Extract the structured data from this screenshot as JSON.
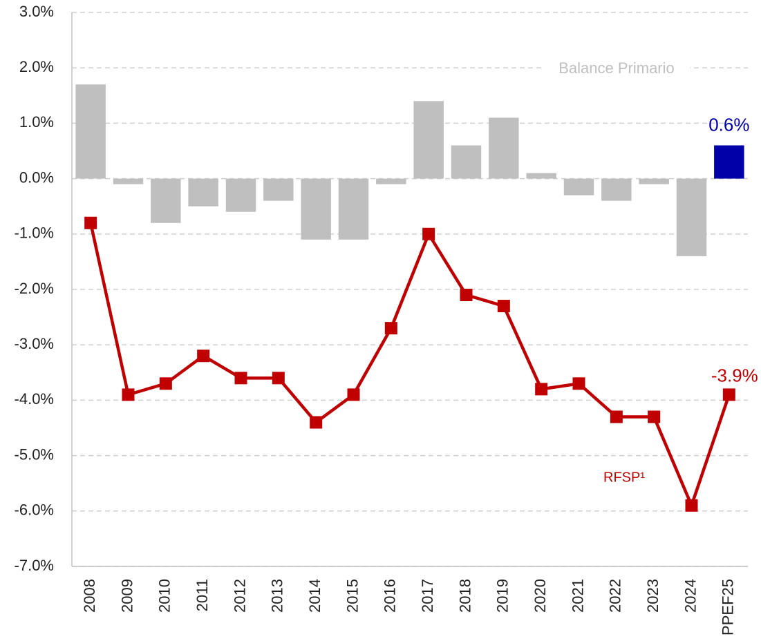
{
  "chart_data": {
    "type": "bar_line",
    "categories": [
      "2008",
      "2009",
      "2010",
      "2011",
      "2012",
      "2013",
      "2014",
      "2015",
      "2016",
      "2017",
      "2018",
      "2019",
      "2020",
      "2021",
      "2022",
      "2023",
      "2024",
      "PPEF25"
    ],
    "series": [
      {
        "name": "Balance Primario",
        "type": "bar",
        "color": "#bfbfbf",
        "highlight_color": "#0000a8",
        "values": [
          1.7,
          -0.1,
          -0.8,
          -0.5,
          -0.6,
          -0.4,
          -1.1,
          -1.1,
          -0.1,
          1.4,
          0.6,
          1.1,
          0.1,
          -0.3,
          -0.4,
          -0.1,
          -1.4,
          0.6
        ],
        "value_labels": [
          null,
          null,
          null,
          null,
          null,
          null,
          null,
          null,
          null,
          null,
          null,
          null,
          null,
          null,
          null,
          null,
          null,
          "0.6%"
        ]
      },
      {
        "name": "RFSP¹",
        "type": "line",
        "color": "#c00000",
        "values": [
          -0.8,
          -3.9,
          -3.7,
          -3.2,
          -3.6,
          -3.6,
          -4.4,
          -3.9,
          -2.7,
          -1.0,
          -2.1,
          -2.3,
          -3.8,
          -3.7,
          -4.3,
          -4.3,
          -5.9,
          -3.9
        ],
        "value_labels": [
          null,
          null,
          null,
          null,
          null,
          null,
          null,
          null,
          null,
          null,
          null,
          null,
          null,
          null,
          null,
          null,
          null,
          "-3.9%"
        ]
      }
    ],
    "ylim": [
      -7,
      3
    ],
    "yticks": [
      {
        "value": -7,
        "label": "-7.0%"
      },
      {
        "value": -6,
        "label": "-6.0%"
      },
      {
        "value": -5,
        "label": "-5.0%"
      },
      {
        "value": -4,
        "label": "-4.0%"
      },
      {
        "value": -3,
        "label": "-3.0%"
      },
      {
        "value": -2,
        "label": "-2.0%"
      },
      {
        "value": -1,
        "label": "-1.0%"
      },
      {
        "value": 0,
        "label": "0.0%"
      },
      {
        "value": 1,
        "label": "1.0%"
      },
      {
        "value": 2,
        "label": "2.0%"
      },
      {
        "value": 3,
        "label": "3.0%"
      }
    ],
    "grid": true
  }
}
